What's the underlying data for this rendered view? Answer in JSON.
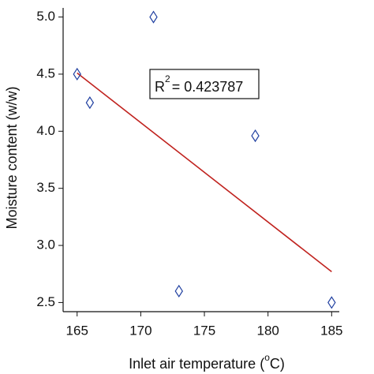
{
  "chart_data": {
    "type": "scatter",
    "xlabel": [
      "Inlet air temperature (",
      "o",
      "C)"
    ],
    "ylabel": "Moisture content (w/w)",
    "x": [
      165,
      166,
      171,
      173,
      179,
      185
    ],
    "values": [
      4.5,
      4.25,
      5.0,
      2.6,
      3.96,
      2.5
    ],
    "color": "#1f3fa0",
    "fit": {
      "x": [
        165,
        185
      ],
      "values": [
        4.51,
        2.77
      ],
      "color": "#c0221e"
    },
    "annotation": [
      "R",
      "2",
      "=  0.423787"
    ],
    "xlim": [
      163.9,
      185.6
    ],
    "ylim": [
      2.42,
      5.08
    ],
    "xticks": [
      165,
      170,
      175,
      180,
      185
    ],
    "yticks": [
      2.5,
      {
        "value": 3,
        "label": "3.0"
      },
      3.5,
      {
        "value": 4,
        "label": "4.0"
      },
      4.5,
      {
        "value": 5,
        "label": "5.0"
      }
    ]
  }
}
